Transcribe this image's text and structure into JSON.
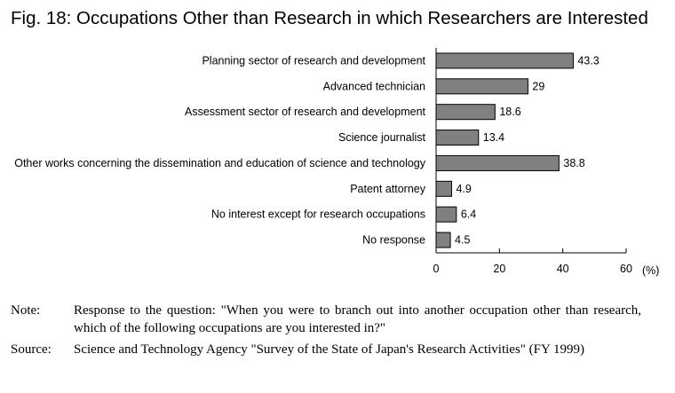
{
  "title": "Fig. 18: Occupations Other than Research in which Researchers are Interested",
  "chart_data": {
    "type": "bar",
    "orientation": "horizontal",
    "categories": [
      "Planning sector of research and development",
      "Advanced technician",
      "Assessment sector of research and development",
      "Science journalist",
      "Other works concerning the dissemination and education of science and technology",
      "Patent attorney",
      "No interest except for research occupations",
      "No response"
    ],
    "values": [
      43.3,
      29,
      18.6,
      13.4,
      38.8,
      4.9,
      6.4,
      4.5
    ],
    "value_labels": [
      "43.3",
      "29",
      "18.6",
      "13.4",
      "38.8",
      "4.9",
      "6.4",
      "4.5"
    ],
    "xlim": [
      0,
      60
    ],
    "xticks": [
      "0",
      "20",
      "40",
      "60"
    ],
    "xunit": "(%)",
    "bar_color": "#808080",
    "grid": false,
    "legend": "none"
  },
  "notes": [
    {
      "label": "Note:",
      "text": "Response to the question: \"When you were to branch out into another occupation other than research, which of the following occupations are you interested in?\""
    },
    {
      "label": "Source:",
      "text": "Science and Technology Agency \"Survey of the State of Japan's Research Activities\" (FY 1999)"
    }
  ]
}
